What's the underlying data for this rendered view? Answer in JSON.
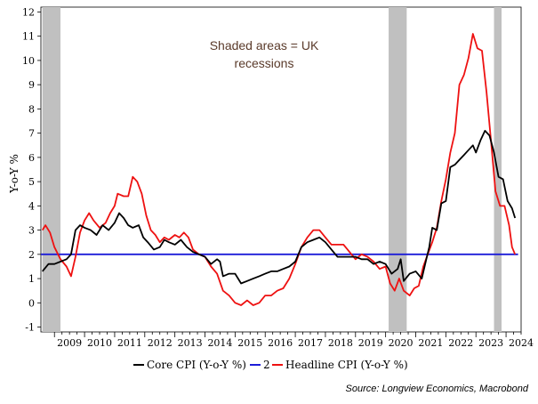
{
  "chart_data": {
    "type": "line",
    "title": "",
    "ylabel": "Y-o-Y %",
    "xlabel": "",
    "xlim": [
      2008.55,
      2024.5
    ],
    "ylim": [
      -1.2,
      12.2
    ],
    "yticks": [
      -1,
      0,
      1,
      2,
      3,
      4,
      5,
      6,
      7,
      8,
      9,
      10,
      11,
      12
    ],
    "xtick_labels": [
      "2009",
      "2010",
      "2011",
      "2012",
      "2013",
      "2014",
      "2015",
      "2016",
      "2017",
      "2018",
      "2019",
      "2020",
      "2021",
      "2022",
      "2023",
      "2024"
    ],
    "annotation": "Shaded areas = UK recessions",
    "annotation_lines": [
      "Shaded areas = UK",
      "recessions"
    ],
    "source": "Source: Longview Economics, Macrobond",
    "recessions": [
      [
        2008.6,
        2009.2
      ],
      [
        2020.1,
        2020.7
      ],
      [
        2023.6,
        2023.85
      ]
    ],
    "legend": [
      "Core CPI (Y-o-Y %)",
      "2",
      "Headline CPI (Y-o-Y %)"
    ],
    "series": [
      {
        "name": "Core CPI (Y-o-Y %)",
        "color": "#000000",
        "points": [
          [
            2008.6,
            1.3
          ],
          [
            2008.8,
            1.6
          ],
          [
            2009.0,
            1.6
          ],
          [
            2009.2,
            1.7
          ],
          [
            2009.4,
            1.8
          ],
          [
            2009.55,
            2.0
          ],
          [
            2009.7,
            3.0
          ],
          [
            2009.85,
            3.2
          ],
          [
            2010.0,
            3.1
          ],
          [
            2010.2,
            3.0
          ],
          [
            2010.4,
            2.8
          ],
          [
            2010.6,
            3.2
          ],
          [
            2010.8,
            3.0
          ],
          [
            2011.0,
            3.3
          ],
          [
            2011.15,
            3.7
          ],
          [
            2011.3,
            3.5
          ],
          [
            2011.45,
            3.2
          ],
          [
            2011.6,
            3.1
          ],
          [
            2011.8,
            3.2
          ],
          [
            2011.95,
            2.7
          ],
          [
            2012.1,
            2.5
          ],
          [
            2012.3,
            2.2
          ],
          [
            2012.5,
            2.3
          ],
          [
            2012.65,
            2.6
          ],
          [
            2012.8,
            2.5
          ],
          [
            2013.0,
            2.4
          ],
          [
            2013.2,
            2.6
          ],
          [
            2013.4,
            2.3
          ],
          [
            2013.6,
            2.1
          ],
          [
            2013.8,
            2.0
          ],
          [
            2014.0,
            1.9
          ],
          [
            2014.2,
            1.6
          ],
          [
            2014.4,
            1.8
          ],
          [
            2014.5,
            1.7
          ],
          [
            2014.6,
            1.1
          ],
          [
            2014.8,
            1.2
          ],
          [
            2015.0,
            1.2
          ],
          [
            2015.2,
            0.8
          ],
          [
            2015.4,
            0.9
          ],
          [
            2015.6,
            1.0
          ],
          [
            2015.8,
            1.1
          ],
          [
            2016.0,
            1.2
          ],
          [
            2016.2,
            1.3
          ],
          [
            2016.4,
            1.3
          ],
          [
            2016.6,
            1.4
          ],
          [
            2016.8,
            1.5
          ],
          [
            2017.0,
            1.7
          ],
          [
            2017.2,
            2.3
          ],
          [
            2017.4,
            2.5
          ],
          [
            2017.6,
            2.6
          ],
          [
            2017.8,
            2.7
          ],
          [
            2018.0,
            2.5
          ],
          [
            2018.2,
            2.2
          ],
          [
            2018.4,
            1.9
          ],
          [
            2018.6,
            1.9
          ],
          [
            2018.8,
            1.9
          ],
          [
            2019.0,
            1.9
          ],
          [
            2019.2,
            1.8
          ],
          [
            2019.4,
            1.8
          ],
          [
            2019.6,
            1.6
          ],
          [
            2019.8,
            1.7
          ],
          [
            2020.0,
            1.6
          ],
          [
            2020.2,
            1.2
          ],
          [
            2020.4,
            1.4
          ],
          [
            2020.5,
            1.8
          ],
          [
            2020.6,
            0.9
          ],
          [
            2020.8,
            1.2
          ],
          [
            2021.0,
            1.3
          ],
          [
            2021.2,
            1.0
          ],
          [
            2021.35,
            1.8
          ],
          [
            2021.45,
            2.3
          ],
          [
            2021.55,
            3.1
          ],
          [
            2021.7,
            3.0
          ],
          [
            2021.85,
            4.1
          ],
          [
            2022.0,
            4.2
          ],
          [
            2022.15,
            5.6
          ],
          [
            2022.3,
            5.7
          ],
          [
            2022.45,
            5.9
          ],
          [
            2022.6,
            6.1
          ],
          [
            2022.75,
            6.3
          ],
          [
            2022.9,
            6.5
          ],
          [
            2023.0,
            6.2
          ],
          [
            2023.15,
            6.7
          ],
          [
            2023.3,
            7.1
          ],
          [
            2023.45,
            6.9
          ],
          [
            2023.6,
            6.2
          ],
          [
            2023.75,
            5.2
          ],
          [
            2023.9,
            5.1
          ],
          [
            2024.05,
            4.2
          ],
          [
            2024.2,
            3.9
          ],
          [
            2024.3,
            3.5
          ]
        ]
      },
      {
        "name": "2",
        "color": "#1c1cd8",
        "points": [
          [
            2008.55,
            2.0
          ],
          [
            2024.4,
            2.0
          ]
        ]
      },
      {
        "name": "Headline CPI (Y-o-Y %)",
        "color": "#ee1111",
        "points": [
          [
            2008.6,
            3.0
          ],
          [
            2008.7,
            3.2
          ],
          [
            2008.85,
            2.9
          ],
          [
            2009.0,
            2.3
          ],
          [
            2009.2,
            1.8
          ],
          [
            2009.4,
            1.5
          ],
          [
            2009.55,
            1.1
          ],
          [
            2009.7,
            1.9
          ],
          [
            2009.85,
            2.9
          ],
          [
            2010.0,
            3.4
          ],
          [
            2010.15,
            3.7
          ],
          [
            2010.3,
            3.4
          ],
          [
            2010.5,
            3.1
          ],
          [
            2010.7,
            3.3
          ],
          [
            2010.85,
            3.7
          ],
          [
            2011.0,
            4.0
          ],
          [
            2011.1,
            4.5
          ],
          [
            2011.3,
            4.4
          ],
          [
            2011.45,
            4.4
          ],
          [
            2011.6,
            5.2
          ],
          [
            2011.75,
            5.0
          ],
          [
            2011.9,
            4.5
          ],
          [
            2012.05,
            3.6
          ],
          [
            2012.2,
            3.0
          ],
          [
            2012.35,
            2.8
          ],
          [
            2012.5,
            2.5
          ],
          [
            2012.65,
            2.7
          ],
          [
            2012.8,
            2.6
          ],
          [
            2013.0,
            2.8
          ],
          [
            2013.15,
            2.7
          ],
          [
            2013.3,
            2.9
          ],
          [
            2013.45,
            2.7
          ],
          [
            2013.6,
            2.2
          ],
          [
            2013.8,
            2.0
          ],
          [
            2014.0,
            1.9
          ],
          [
            2014.2,
            1.5
          ],
          [
            2014.4,
            1.2
          ],
          [
            2014.6,
            0.5
          ],
          [
            2014.8,
            0.3
          ],
          [
            2015.0,
            0.0
          ],
          [
            2015.2,
            -0.1
          ],
          [
            2015.4,
            0.1
          ],
          [
            2015.6,
            -0.1
          ],
          [
            2015.8,
            0.0
          ],
          [
            2016.0,
            0.3
          ],
          [
            2016.2,
            0.3
          ],
          [
            2016.4,
            0.5
          ],
          [
            2016.6,
            0.6
          ],
          [
            2016.8,
            1.0
          ],
          [
            2017.0,
            1.6
          ],
          [
            2017.2,
            2.3
          ],
          [
            2017.4,
            2.7
          ],
          [
            2017.6,
            3.0
          ],
          [
            2017.8,
            3.0
          ],
          [
            2018.0,
            2.7
          ],
          [
            2018.2,
            2.4
          ],
          [
            2018.4,
            2.4
          ],
          [
            2018.6,
            2.4
          ],
          [
            2018.8,
            2.1
          ],
          [
            2019.0,
            1.8
          ],
          [
            2019.2,
            2.0
          ],
          [
            2019.4,
            1.9
          ],
          [
            2019.6,
            1.7
          ],
          [
            2019.8,
            1.4
          ],
          [
            2020.0,
            1.5
          ],
          [
            2020.15,
            0.8
          ],
          [
            2020.3,
            0.5
          ],
          [
            2020.45,
            1.0
          ],
          [
            2020.6,
            0.5
          ],
          [
            2020.8,
            0.3
          ],
          [
            2020.95,
            0.6
          ],
          [
            2021.1,
            0.7
          ],
          [
            2021.25,
            1.5
          ],
          [
            2021.4,
            2.0
          ],
          [
            2021.55,
            2.5
          ],
          [
            2021.7,
            3.1
          ],
          [
            2021.85,
            4.2
          ],
          [
            2022.0,
            5.1
          ],
          [
            2022.15,
            6.2
          ],
          [
            2022.3,
            7.0
          ],
          [
            2022.45,
            9.0
          ],
          [
            2022.6,
            9.4
          ],
          [
            2022.75,
            10.1
          ],
          [
            2022.9,
            11.1
          ],
          [
            2023.05,
            10.5
          ],
          [
            2023.2,
            10.4
          ],
          [
            2023.35,
            8.7
          ],
          [
            2023.5,
            6.7
          ],
          [
            2023.65,
            4.6
          ],
          [
            2023.8,
            4.0
          ],
          [
            2023.95,
            4.0
          ],
          [
            2024.1,
            3.2
          ],
          [
            2024.2,
            2.3
          ],
          [
            2024.3,
            2.0
          ]
        ]
      }
    ]
  }
}
